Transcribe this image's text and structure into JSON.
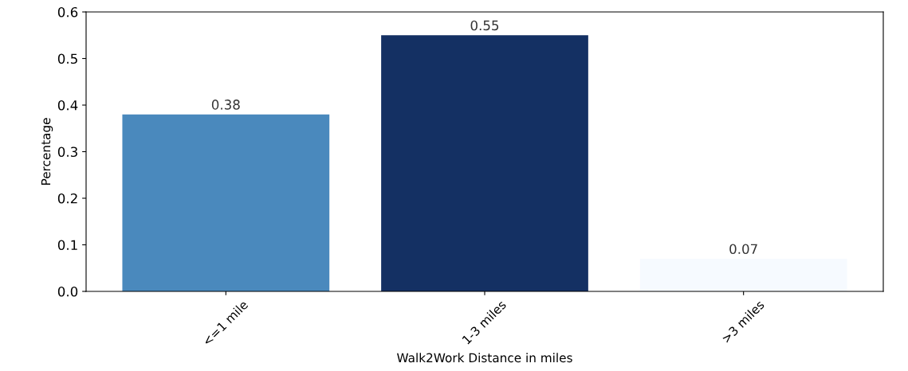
{
  "chart_data": {
    "type": "bar",
    "xlabel": "Walk2Work Distance in miles",
    "ylabel": "Percentage",
    "categories": [
      "<=1 mile",
      "1-3 miles",
      ">3 miles"
    ],
    "values": [
      0.38,
      0.55,
      0.07
    ],
    "colors": [
      "#4a89bd",
      "#143063",
      "#f6faff"
    ],
    "ylim": [
      0,
      0.6
    ],
    "yticks": [
      {
        "value": 0,
        "label": "0.0"
      },
      0.1,
      0.2,
      0.3,
      0.4,
      0.5,
      0.6
    ],
    "data_labels": true,
    "grid": false,
    "legend": false
  }
}
